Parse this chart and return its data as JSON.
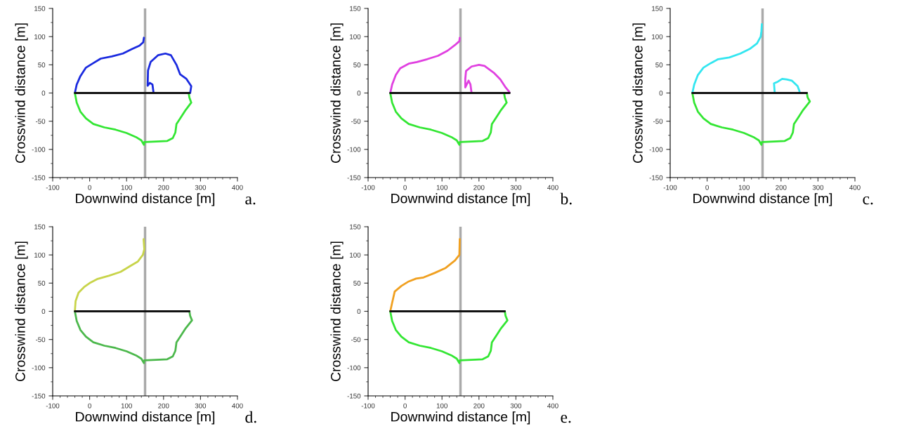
{
  "chart_data": [
    {
      "type": "line",
      "xlabel": "Downwind distance [m]",
      "ylabel": "Crosswind distance [m]",
      "xlim": [
        -100,
        400
      ],
      "ylim": [
        -150,
        150
      ],
      "xticks": [
        -100,
        {
          "value": -80,
          "label": null
        },
        {
          "value": -60,
          "label": null
        },
        {
          "value": -40,
          "label": null
        },
        {
          "value": -20,
          "label": null
        },
        0,
        {
          "value": 20,
          "label": null
        },
        {
          "value": 40,
          "label": null
        },
        {
          "value": 60,
          "label": null
        },
        {
          "value": 80,
          "label": null
        },
        100,
        {
          "value": 120,
          "label": null
        },
        {
          "value": 140,
          "label": null
        },
        {
          "value": 160,
          "label": null
        },
        {
          "value": 180,
          "label": null
        },
        200,
        {
          "value": 220,
          "label": null
        },
        {
          "value": 240,
          "label": null
        },
        {
          "value": 260,
          "label": null
        },
        {
          "value": 280,
          "label": null
        },
        300,
        {
          "value": 320,
          "label": null
        },
        {
          "value": 340,
          "label": null
        },
        {
          "value": 360,
          "label": null
        },
        {
          "value": 380,
          "label": null
        },
        400
      ],
      "yticks": [
        -150,
        {
          "value": -125,
          "label": null
        },
        -100,
        {
          "value": -75,
          "label": null
        },
        -50,
        {
          "value": -25,
          "label": null
        },
        0,
        {
          "value": 25,
          "label": null
        },
        50,
        {
          "value": 75,
          "label": null
        },
        100,
        {
          "value": 125,
          "label": null
        },
        150
      ],
      "series": [
        {
          "color": "#1a2adf",
          "x": [
            -40,
            -35,
            -25,
            -10,
            10,
            30,
            60,
            90,
            115,
            135,
            145,
            147
          ],
          "values": [
            0,
            15,
            30,
            45,
            53,
            61,
            65,
            70,
            78,
            84,
            90,
            98
          ]
        },
        {
          "color": "#1a2adf",
          "x": [
            173,
            170,
            163,
            157,
            158,
            165,
            185,
            205,
            220,
            235,
            245,
            262,
            275,
            272
          ],
          "values": [
            0,
            15,
            18,
            13,
            40,
            55,
            67,
            70,
            67,
            50,
            33,
            25,
            12,
            0
          ]
        },
        {
          "color": "#33e633",
          "x": [
            -40,
            -35,
            -25,
            -10,
            10,
            40,
            70,
            100,
            125,
            140,
            147,
            148,
            180,
            210,
            225,
            232,
            235,
            245,
            260,
            275,
            270,
            268
          ],
          "values": [
            0,
            -17,
            -33,
            -45,
            -55,
            -61,
            -65,
            -71,
            -78,
            -84,
            -92,
            -87,
            -86,
            -85,
            -80,
            -70,
            -55,
            -45,
            -30,
            -17,
            -8,
            0
          ]
        },
        {
          "color": "#111111",
          "x": [
            -40,
            270
          ],
          "values": [
            0,
            0
          ]
        }
      ],
      "ref_lines": [
        {
          "axis": "x",
          "value": 150,
          "color": "#aaaaaa"
        }
      ],
      "annotations": [
        "a."
      ]
    },
    {
      "type": "line",
      "xlabel": "Downwind distance [m]",
      "ylabel": "Crosswind distance [m]",
      "xlim": [
        -100,
        400
      ],
      "ylim": [
        -150,
        150
      ],
      "xticks": [
        -100,
        {
          "value": -80,
          "label": null
        },
        {
          "value": -60,
          "label": null
        },
        {
          "value": -40,
          "label": null
        },
        {
          "value": -20,
          "label": null
        },
        0,
        {
          "value": 20,
          "label": null
        },
        {
          "value": 40,
          "label": null
        },
        {
          "value": 60,
          "label": null
        },
        {
          "value": 80,
          "label": null
        },
        100,
        {
          "value": 120,
          "label": null
        },
        {
          "value": 140,
          "label": null
        },
        {
          "value": 160,
          "label": null
        },
        {
          "value": 180,
          "label": null
        },
        200,
        {
          "value": 220,
          "label": null
        },
        {
          "value": 240,
          "label": null
        },
        {
          "value": 260,
          "label": null
        },
        {
          "value": 280,
          "label": null
        },
        300,
        {
          "value": 320,
          "label": null
        },
        {
          "value": 340,
          "label": null
        },
        {
          "value": 360,
          "label": null
        },
        {
          "value": 380,
          "label": null
        },
        400
      ],
      "yticks": [
        -150,
        {
          "value": -125,
          "label": null
        },
        -100,
        {
          "value": -75,
          "label": null
        },
        -50,
        {
          "value": -25,
          "label": null
        },
        0,
        {
          "value": 25,
          "label": null
        },
        50,
        {
          "value": 75,
          "label": null
        },
        100,
        {
          "value": 125,
          "label": null
        },
        150
      ],
      "series": [
        {
          "color": "#e040e0",
          "x": [
            -40,
            -35,
            -25,
            -13,
            10,
            32,
            60,
            89,
            115,
            135,
            147,
            148
          ],
          "values": [
            0,
            15,
            32,
            44,
            52,
            55,
            60,
            66,
            75,
            85,
            92,
            98
          ]
        },
        {
          "color": "#e040e0",
          "x": [
            180,
            177,
            172,
            163,
            163,
            165,
            180,
            200,
            215,
            240,
            258,
            272,
            282,
            282
          ],
          "values": [
            0,
            15,
            22,
            10,
            25,
            39,
            47,
            50,
            48,
            36,
            24,
            10,
            2,
            0
          ]
        },
        {
          "color": "#33e633",
          "x": [
            -40,
            -35,
            -25,
            -10,
            10,
            40,
            70,
            100,
            125,
            140,
            147,
            148,
            180,
            210,
            225,
            232,
            235,
            245,
            260,
            275,
            270,
            268
          ],
          "values": [
            0,
            -17,
            -33,
            -45,
            -55,
            -61,
            -65,
            -71,
            -78,
            -84,
            -92,
            -87,
            -86,
            -85,
            -80,
            -70,
            -55,
            -45,
            -30,
            -17,
            -8,
            0
          ]
        },
        {
          "color": "#111111",
          "x": [
            -40,
            283
          ],
          "values": [
            0,
            0
          ]
        }
      ],
      "ref_lines": [
        {
          "axis": "x",
          "value": 150,
          "color": "#aaaaaa"
        }
      ],
      "annotations": [
        "b."
      ]
    },
    {
      "type": "line",
      "xlabel": "Downwind distance [m]",
      "ylabel": "Crosswind distance [m]",
      "xlim": [
        -100,
        400
      ],
      "ylim": [
        -150,
        150
      ],
      "xticks": [
        -100,
        {
          "value": -80,
          "label": null
        },
        {
          "value": -60,
          "label": null
        },
        {
          "value": -40,
          "label": null
        },
        {
          "value": -20,
          "label": null
        },
        0,
        {
          "value": 20,
          "label": null
        },
        {
          "value": 40,
          "label": null
        },
        {
          "value": 60,
          "label": null
        },
        {
          "value": 80,
          "label": null
        },
        100,
        {
          "value": 120,
          "label": null
        },
        {
          "value": 140,
          "label": null
        },
        {
          "value": 160,
          "label": null
        },
        {
          "value": 180,
          "label": null
        },
        200,
        {
          "value": 220,
          "label": null
        },
        {
          "value": 240,
          "label": null
        },
        {
          "value": 260,
          "label": null
        },
        {
          "value": 280,
          "label": null
        },
        300,
        {
          "value": 320,
          "label": null
        },
        {
          "value": 340,
          "label": null
        },
        {
          "value": 360,
          "label": null
        },
        {
          "value": 380,
          "label": null
        },
        400
      ],
      "yticks": [
        -150,
        {
          "value": -125,
          "label": null
        },
        -100,
        {
          "value": -75,
          "label": null
        },
        -50,
        {
          "value": -25,
          "label": null
        },
        0,
        {
          "value": 25,
          "label": null
        },
        50,
        {
          "value": 75,
          "label": null
        },
        100,
        {
          "value": 125,
          "label": null
        },
        150
      ],
      "series": [
        {
          "color": "#33e6f0",
          "x": [
            -40,
            -35,
            -25,
            -10,
            10,
            30,
            60,
            90,
            115,
            135,
            145,
            147,
            148
          ],
          "values": [
            0,
            15,
            32,
            45,
            53,
            60,
            63,
            70,
            78,
            88,
            100,
            110,
            122
          ]
        },
        {
          "color": "#33e6f0",
          "x": [
            183,
            181,
            191,
            203,
            215,
            229,
            245,
            250,
            250
          ],
          "values": [
            0,
            17,
            20,
            25,
            24,
            22,
            12,
            3,
            0
          ]
        },
        {
          "color": "#33e633",
          "x": [
            -40,
            -35,
            -25,
            -10,
            10,
            40,
            70,
            100,
            125,
            140,
            147,
            148,
            180,
            210,
            225,
            232,
            235,
            245,
            260,
            278,
            272,
            270
          ],
          "values": [
            0,
            -17,
            -33,
            -45,
            -55,
            -61,
            -65,
            -71,
            -78,
            -84,
            -92,
            -87,
            -86,
            -85,
            -80,
            -70,
            -55,
            -45,
            -30,
            -15,
            -8,
            0
          ]
        },
        {
          "color": "#111111",
          "x": [
            -40,
            270
          ],
          "values": [
            0,
            0
          ]
        }
      ],
      "ref_lines": [
        {
          "axis": "x",
          "value": 150,
          "color": "#aaaaaa"
        }
      ],
      "annotations": [
        "c."
      ]
    },
    {
      "type": "line",
      "xlabel": "Downwind distance [m]",
      "ylabel": "Crosswind distance [m]",
      "xlim": [
        -100,
        400
      ],
      "ylim": [
        -150,
        150
      ],
      "xticks": [
        -100,
        {
          "value": -80,
          "label": null
        },
        {
          "value": -60,
          "label": null
        },
        {
          "value": -40,
          "label": null
        },
        {
          "value": -20,
          "label": null
        },
        0,
        {
          "value": 20,
          "label": null
        },
        {
          "value": 40,
          "label": null
        },
        {
          "value": 60,
          "label": null
        },
        {
          "value": 80,
          "label": null
        },
        100,
        {
          "value": 120,
          "label": null
        },
        {
          "value": 140,
          "label": null
        },
        {
          "value": 160,
          "label": null
        },
        {
          "value": 180,
          "label": null
        },
        200,
        {
          "value": 220,
          "label": null
        },
        {
          "value": 240,
          "label": null
        },
        {
          "value": 260,
          "label": null
        },
        {
          "value": 280,
          "label": null
        },
        300,
        {
          "value": 320,
          "label": null
        },
        {
          "value": 340,
          "label": null
        },
        {
          "value": 360,
          "label": null
        },
        {
          "value": 380,
          "label": null
        },
        400
      ],
      "yticks": [
        -150,
        {
          "value": -125,
          "label": null
        },
        -100,
        {
          "value": -75,
          "label": null
        },
        -50,
        {
          "value": -25,
          "label": null
        },
        0,
        {
          "value": 25,
          "label": null
        },
        50,
        {
          "value": 75,
          "label": null
        },
        100,
        {
          "value": 125,
          "label": null
        },
        150
      ],
      "series": [
        {
          "color": "#c8d44a",
          "x": [
            -40,
            -38,
            -30,
            -15,
            0,
            20,
            52,
            84,
            109,
            130,
            144,
            148,
            146
          ],
          "values": [
            0,
            18,
            33,
            43,
            50,
            57,
            63,
            70,
            80,
            88,
            100,
            110,
            128
          ]
        },
        {
          "color": "#4cb84c",
          "x": [
            -40,
            -35,
            -25,
            -10,
            10,
            40,
            70,
            100,
            125,
            140,
            147,
            148,
            180,
            210,
            225,
            232,
            235,
            245,
            260,
            277,
            272,
            270
          ],
          "values": [
            0,
            -17,
            -33,
            -45,
            -55,
            -61,
            -65,
            -71,
            -78,
            -84,
            -92,
            -87,
            -86,
            -85,
            -80,
            -70,
            -55,
            -45,
            -30,
            -16,
            -8,
            0
          ]
        },
        {
          "color": "#111111",
          "x": [
            -40,
            270
          ],
          "values": [
            0,
            0
          ]
        }
      ],
      "ref_lines": [
        {
          "axis": "x",
          "value": 150,
          "color": "#aaaaaa"
        }
      ],
      "annotations": [
        "d."
      ]
    },
    {
      "type": "line",
      "xlabel": "Downwind distance [m]",
      "ylabel": "Crosswind distance [m]",
      "xlim": [
        -100,
        400
      ],
      "ylim": [
        -150,
        150
      ],
      "xticks": [
        -100,
        {
          "value": -80,
          "label": null
        },
        {
          "value": -60,
          "label": null
        },
        {
          "value": -40,
          "label": null
        },
        {
          "value": -20,
          "label": null
        },
        0,
        {
          "value": 20,
          "label": null
        },
        {
          "value": 40,
          "label": null
        },
        {
          "value": 60,
          "label": null
        },
        {
          "value": 80,
          "label": null
        },
        100,
        {
          "value": 120,
          "label": null
        },
        {
          "value": 140,
          "label": null
        },
        {
          "value": 160,
          "label": null
        },
        {
          "value": 180,
          "label": null
        },
        200,
        {
          "value": 220,
          "label": null
        },
        {
          "value": 240,
          "label": null
        },
        {
          "value": 260,
          "label": null
        },
        {
          "value": 280,
          "label": null
        },
        300,
        {
          "value": 320,
          "label": null
        },
        {
          "value": 340,
          "label": null
        },
        {
          "value": 360,
          "label": null
        },
        {
          "value": 380,
          "label": null
        },
        400
      ],
      "yticks": [
        -150,
        {
          "value": -125,
          "label": null
        },
        -100,
        {
          "value": -75,
          "label": null
        },
        -50,
        {
          "value": -25,
          "label": null
        },
        0,
        {
          "value": 25,
          "label": null
        },
        50,
        {
          "value": 75,
          "label": null
        },
        100,
        {
          "value": 125,
          "label": null
        },
        150
      ],
      "series": [
        {
          "color": "#f0a020",
          "x": [
            -40,
            -35,
            -28,
            -10,
            10,
            30,
            50,
            80,
            110,
            135,
            147,
            148
          ],
          "values": [
            0,
            15,
            35,
            45,
            53,
            58,
            60,
            68,
            77,
            90,
            100,
            128
          ]
        },
        {
          "color": "#33e633",
          "x": [
            -40,
            -35,
            -25,
            -10,
            10,
            40,
            70,
            100,
            125,
            140,
            147,
            148,
            180,
            210,
            225,
            232,
            235,
            245,
            260,
            277,
            272,
            270
          ],
          "values": [
            0,
            -17,
            -33,
            -45,
            -55,
            -61,
            -65,
            -71,
            -78,
            -84,
            -92,
            -87,
            -86,
            -85,
            -80,
            -70,
            -55,
            -45,
            -30,
            -16,
            -8,
            0
          ]
        },
        {
          "color": "#111111",
          "x": [
            -40,
            270
          ],
          "values": [
            0,
            0
          ]
        }
      ],
      "ref_lines": [
        {
          "axis": "x",
          "value": 150,
          "color": "#aaaaaa"
        }
      ],
      "annotations": [
        "e."
      ]
    }
  ]
}
